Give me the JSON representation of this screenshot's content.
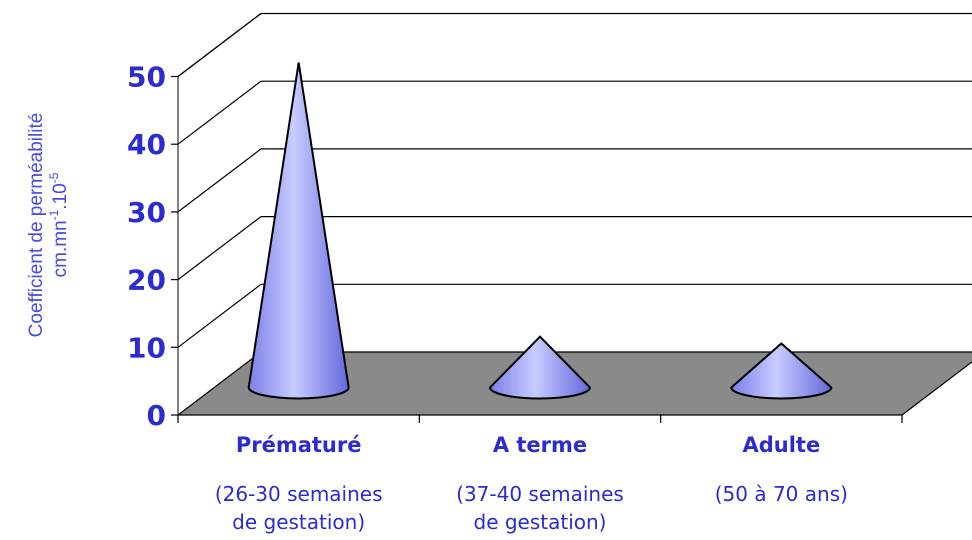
{
  "chart_data": {
    "type": "bar",
    "style": "3d-cone",
    "categories": [
      "Prématuré",
      "A terme",
      "Adulte"
    ],
    "category_sublabels": [
      [
        "(26-30 semaines",
        "de gestation)"
      ],
      [
        "(37-40 semaines",
        "de gestation)"
      ],
      [
        "(50 à 70 ans)"
      ]
    ],
    "values": [
      48,
      7.5,
      6.5
    ],
    "ylabel_line1": "Coefficient de perméabilité",
    "ylabel_line2_base": "cm.mn",
    "ylabel_line2_sup1": "-1",
    "ylabel_line2_mid": ".10",
    "ylabel_line2_sup2": "-5",
    "ylim": [
      0,
      50
    ],
    "yticks": [
      0,
      10,
      20,
      30,
      40,
      50
    ],
    "grid": true,
    "legend": "none",
    "colors": {
      "cone_light": "#c4c8ff",
      "cone_dark": "#6a6ee0",
      "floor": "#8a8a8a",
      "text": "#2b2bd0",
      "ylabel": "#4a4ae0"
    }
  }
}
